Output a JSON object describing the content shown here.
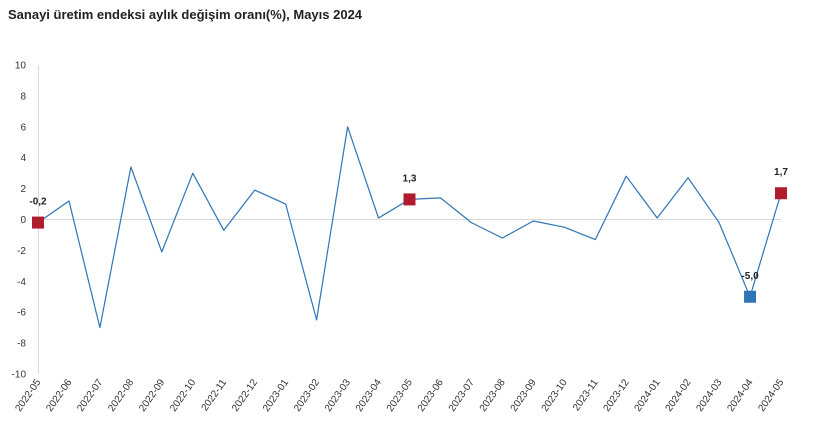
{
  "chart_data": {
    "type": "line",
    "title": "Sanayi üretim endeksi aylık değişim oranı(%), Mayıs 2024",
    "xlabel": "",
    "ylabel": "",
    "ylim": [
      -10,
      10
    ],
    "yticks": [
      "10",
      "8",
      "6",
      "4",
      "2",
      "0",
      "-2",
      "-4",
      "-6",
      "-8",
      "-10"
    ],
    "ytick_values": [
      10,
      8,
      6,
      4,
      2,
      0,
      -2,
      -4,
      -6,
      -8,
      -10
    ],
    "grid": false,
    "legend": "none",
    "categories": [
      "2022-05",
      "2022-06",
      "2022-07",
      "2022-08",
      "2022-09",
      "2022-10",
      "2022-11",
      "2022-12",
      "2023-01",
      "2023-02",
      "2023-03",
      "2023-04",
      "2023-05",
      "2023-06",
      "2023-07",
      "2023-08",
      "2023-09",
      "2023-10",
      "2023-11",
      "2023-12",
      "2024-01",
      "2024-02",
      "2024-03",
      "2024-04",
      "2024-05"
    ],
    "series": [
      {
        "values": [
          -0.2,
          1.2,
          -7.0,
          3.4,
          -2.1,
          3.0,
          -0.7,
          1.9,
          1.0,
          -6.5,
          6.0,
          0.1,
          1.3,
          1.4,
          -0.2,
          -1.2,
          -0.1,
          -0.5,
          -1.3,
          2.8,
          0.1,
          2.7,
          -0.2,
          -5.0,
          1.7
        ],
        "color": "#2e75b6"
      }
    ],
    "markers": [
      {
        "index": 0,
        "label": "-0,2",
        "color": "#b01c2e",
        "label_pos": "above"
      },
      {
        "index": 12,
        "label": "1,3",
        "color": "#b01c2e",
        "label_pos": "above"
      },
      {
        "index": 23,
        "label": "-5,0",
        "color": "#2e75b6",
        "label_pos": "above"
      },
      {
        "index": 24,
        "label": "1,7",
        "color": "#b01c2e",
        "label_pos": "above"
      }
    ]
  }
}
